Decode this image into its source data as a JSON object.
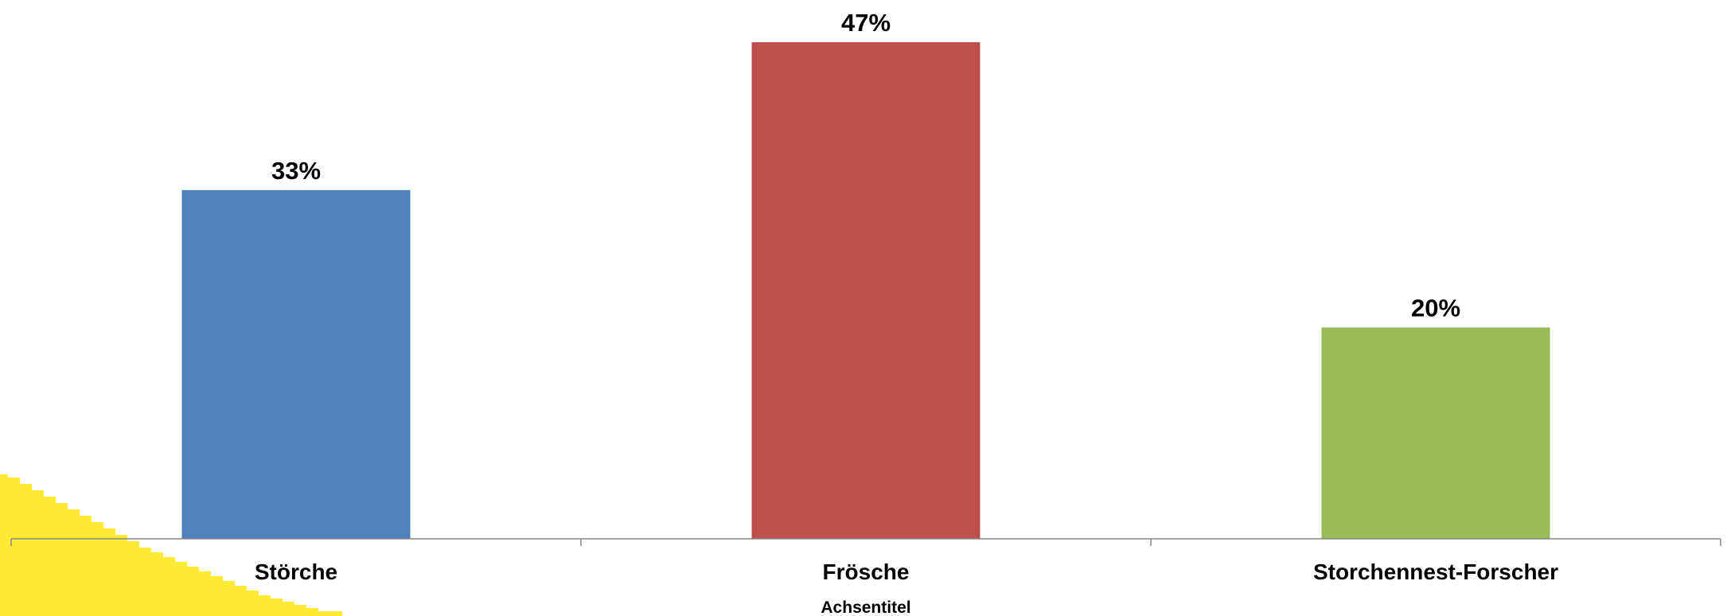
{
  "chart_data": {
    "type": "bar",
    "categories": [
      "Störche",
      "Frösche",
      "Storchennest-Forscher"
    ],
    "values": [
      33,
      47,
      20
    ],
    "data_labels": [
      "33%",
      "47%",
      "20%"
    ],
    "colors": [
      "#4f81bd",
      "#c0504d",
      "#9bbb59"
    ],
    "xlabel": "Achsentitel",
    "ylim": [
      0,
      47
    ],
    "grid": false,
    "legend": "none"
  },
  "decoration": {
    "shape_color": "#ffeb33"
  }
}
